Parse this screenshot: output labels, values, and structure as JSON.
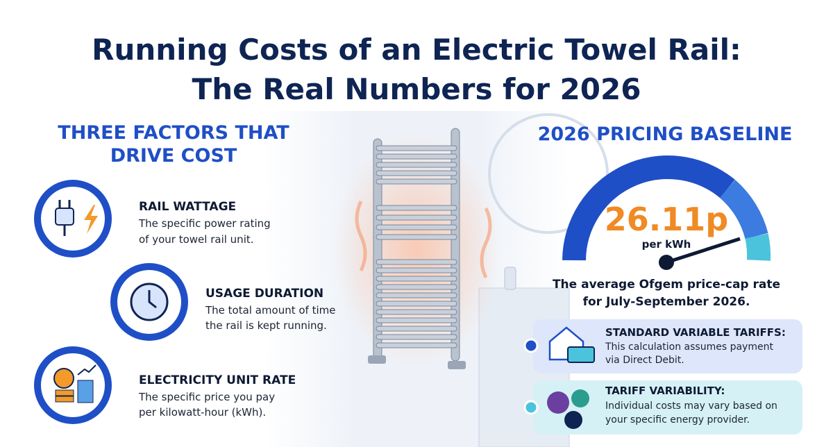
{
  "header": {
    "title_lines": [
      "Running Costs of an Electric Towel Rail:",
      "The Real Numbers for 2026"
    ]
  },
  "factors": {
    "heading_lines": [
      "THREE FACTORS THAT",
      "DRIVE COST"
    ],
    "items": [
      {
        "title": "RAIL WATTAGE",
        "lines": [
          "The specific power rating",
          "of your towel rail unit."
        ]
      },
      {
        "title": "USAGE DURATION",
        "lines": [
          "The total amount of time",
          "the rail is kept running."
        ]
      },
      {
        "title": "ELECTRICITY UNIT RATE",
        "lines": [
          "The specific price you pay",
          "per kilowatt-hour (kWh)."
        ]
      }
    ]
  },
  "pricing": {
    "heading": "2026 PRICING BASELINE",
    "rate": "26.11p",
    "unit": "per kWh",
    "caption_lines": [
      "The average Ofgem price-cap rate",
      "for July-September 2026."
    ],
    "cards": [
      {
        "title": "STANDARD VARIABLE TARIFFS:",
        "lines": [
          "This calculation assumes payment",
          "via Direct Debit."
        ]
      },
      {
        "title": "TARIFF VARIABILITY:",
        "lines": [
          "Individual costs may vary based on",
          "your specific energy provider."
        ]
      }
    ]
  }
}
